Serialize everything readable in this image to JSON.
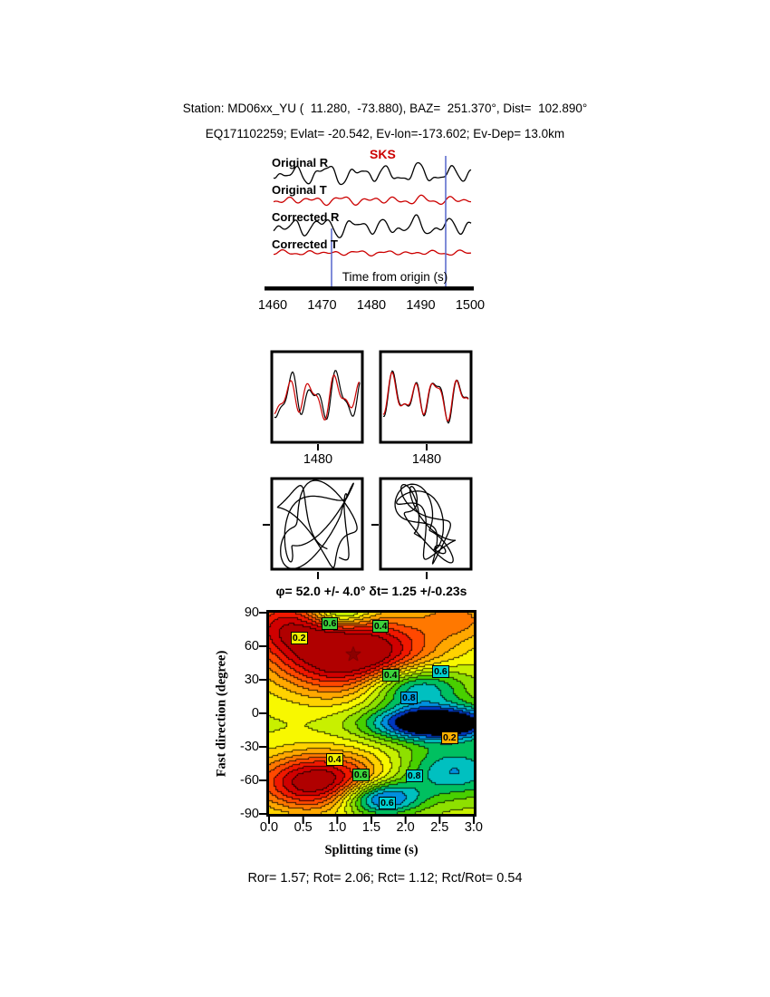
{
  "header": {
    "line1": "Station: MD06xx_YU (  11.280,  -73.880), BAZ=  251.370°, Dist=  102.890°",
    "line2": "EQ171102259; Evlat= -20.542, Ev-lon=-173.602; Ev-Dep= 13.0km"
  },
  "waveform_panel": {
    "phase_label": "SKS",
    "axis_label": "Time from origin (s)",
    "traces": [
      {
        "label": "Original R",
        "color": "#000000"
      },
      {
        "label": "Original T",
        "color": "#cc0000"
      },
      {
        "label": "Corrected R",
        "color": "#000000"
      },
      {
        "label": "Corrected T",
        "color": "#cc0000"
      }
    ],
    "ticks": [
      "1460",
      "1470",
      "1480",
      "1490",
      "1500"
    ],
    "marker_color": "#5566cc"
  },
  "zoom_boxes": {
    "left_tick": "1480",
    "right_tick": "1480"
  },
  "contour": {
    "title": "φ= 52.0 +/- 4.0° δt= 1.25 +/-0.23s",
    "xlabel": "Splitting time (s)",
    "ylabel": "Fast direction (degree)",
    "xticks": [
      "0.0",
      "0.5",
      "1.0",
      "1.5",
      "2.0",
      "2.5",
      "3.0"
    ],
    "yticks": [
      "90",
      "60",
      "30",
      "0",
      "-30",
      "-60",
      "-90"
    ],
    "star_color": "#8b0000",
    "labels": [
      {
        "text": "0.6",
        "bg": "#3cd23c",
        "fx": 0.3,
        "fy": 0.054
      },
      {
        "text": "0.4",
        "bg": "#3cd23c",
        "fx": 0.548,
        "fy": 0.068
      },
      {
        "text": "0.2",
        "bg": "#f0f000",
        "fx": 0.15,
        "fy": 0.126
      },
      {
        "text": "0.4",
        "bg": "#3cd23c",
        "fx": 0.597,
        "fy": 0.311
      },
      {
        "text": "0.6",
        "bg": "#00d0d0",
        "fx": 0.841,
        "fy": 0.293
      },
      {
        "text": "0.8",
        "bg": "#00a0e0",
        "fx": 0.686,
        "fy": 0.423
      },
      {
        "text": "0.2",
        "bg": "#ffb000",
        "fx": 0.885,
        "fy": 0.622
      },
      {
        "text": "0.4",
        "bg": "#f0f000",
        "fx": 0.323,
        "fy": 0.73
      },
      {
        "text": "0.6",
        "bg": "#3cd23c",
        "fx": 0.451,
        "fy": 0.806
      },
      {
        "text": "0.8",
        "bg": "#00d0d0",
        "fx": 0.712,
        "fy": 0.811
      },
      {
        "text": "0.6",
        "bg": "#00d0d0",
        "fx": 0.58,
        "fy": 0.946
      }
    ]
  },
  "footer": {
    "stats": "Ror= 1.57; Rot= 2.06; Rct= 1.12; Rct/Rot= 0.54"
  },
  "statistics": {
    "Ror": 1.57,
    "Rot": 2.06,
    "Rct": 1.12,
    "Rct_over_Rot": 0.54
  },
  "chart_data": [
    {
      "type": "line",
      "title": "Original and corrected radial/transverse seismograms",
      "xlabel": "Time from origin (s)",
      "xlim": [
        1455,
        1503
      ],
      "x_ticks": [
        1460,
        1470,
        1480,
        1490,
        1500
      ],
      "series": [
        {
          "name": "Original R",
          "color": "#000000"
        },
        {
          "name": "Original T",
          "color": "#cc0000"
        },
        {
          "name": "Corrected R",
          "color": "#000000"
        },
        {
          "name": "Corrected T",
          "color": "#cc0000"
        }
      ],
      "annotations": [
        {
          "text": "SKS",
          "color": "#cc0000",
          "x": 1483
        },
        {
          "type": "window-marker",
          "x": 1473
        },
        {
          "type": "window-marker",
          "x": 1497
        }
      ]
    },
    {
      "type": "line",
      "title": "Waveforms in measurement window (black vs red overlay)",
      "panels": 2,
      "x_ticks": [
        1480
      ]
    },
    {
      "type": "scatter",
      "title": "Particle motion: original (left) and corrected (right)",
      "panels": 2
    },
    {
      "type": "heatmap",
      "title": "Splitting parameter error surface",
      "xlabel": "Splitting time (s)",
      "ylabel": "Fast direction (degree)",
      "xlim": [
        0,
        3
      ],
      "ylim": [
        -90,
        90
      ],
      "x_ticks": [
        0,
        0.5,
        1,
        1.5,
        2,
        2.5,
        3
      ],
      "y_ticks": [
        90,
        60,
        30,
        0,
        -30,
        -60,
        -90
      ],
      "labeled_contour_levels": [
        0.2,
        0.4,
        0.6,
        0.8
      ],
      "best_fit": {
        "phi_deg": 52.0,
        "phi_err_deg": 4.0,
        "dt_s": 1.25,
        "dt_err_s": 0.23,
        "marker": "star",
        "x": 1.25,
        "y": 52
      }
    }
  ]
}
